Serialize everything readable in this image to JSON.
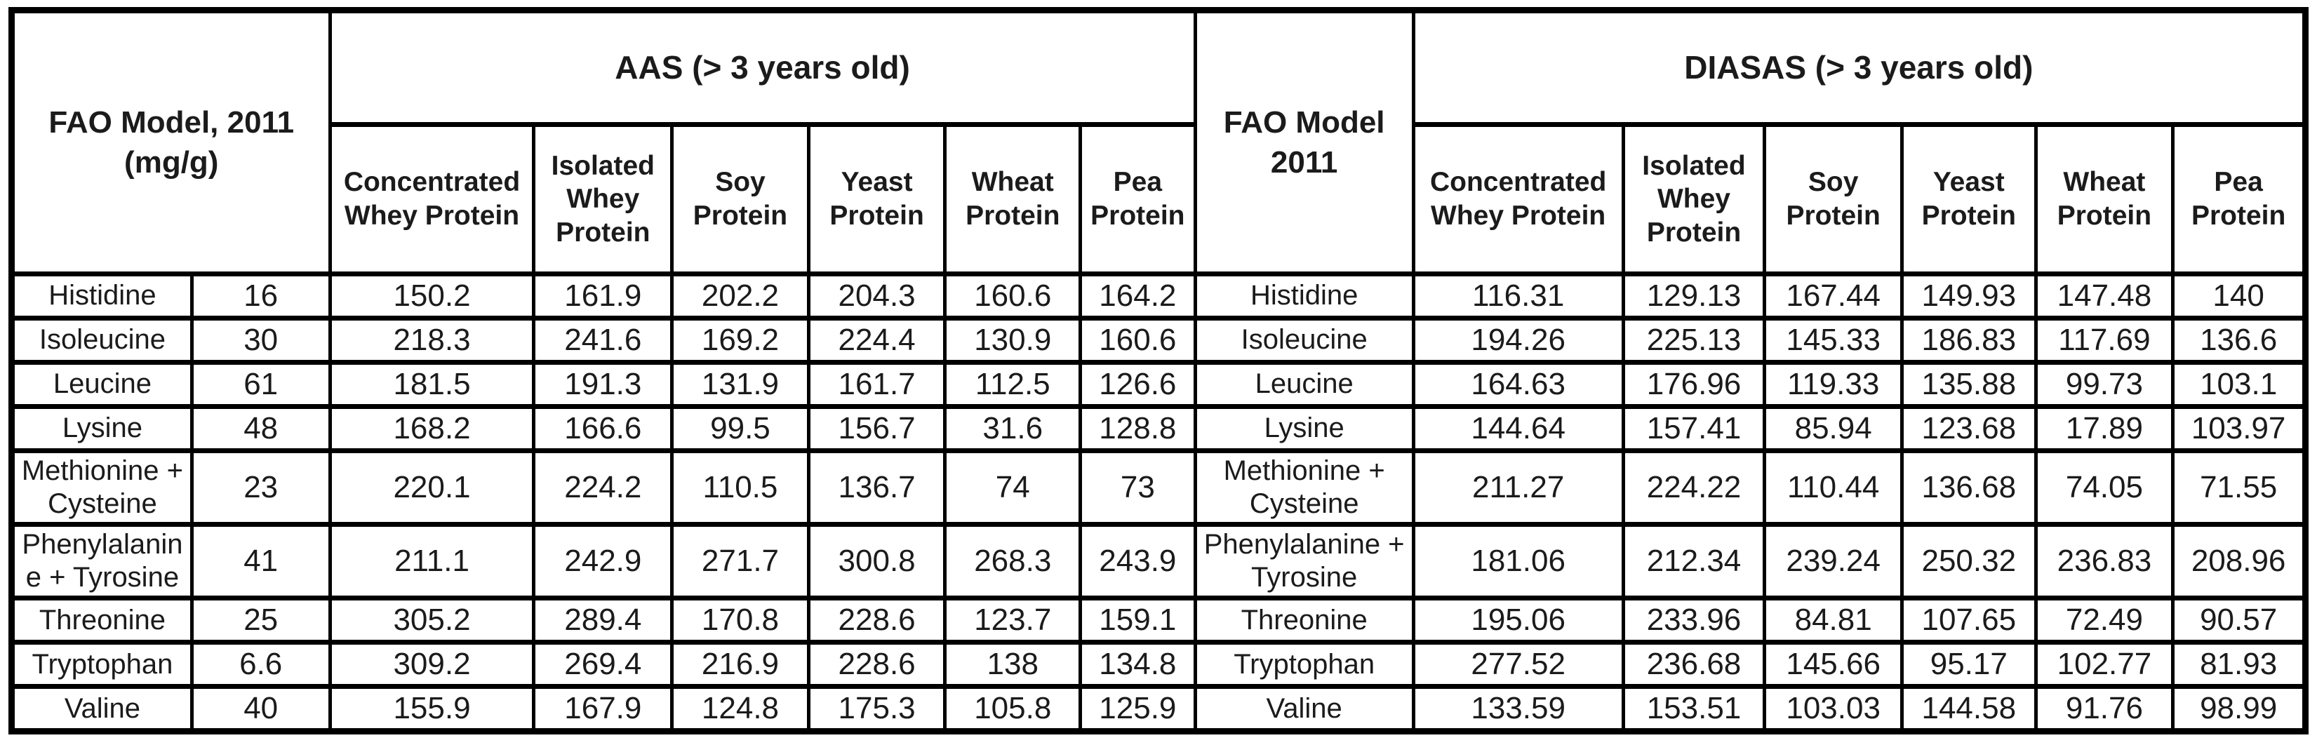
{
  "colors": {
    "background": "#ffffff",
    "text": "#1b1b1b",
    "border": "#000000"
  },
  "table": {
    "left_header": {
      "line1": "FAO Model, 2011",
      "line2": "(mg/g)"
    },
    "aas_banner": "AAS (> 3 years old)",
    "mid_header": {
      "line1": "FAO Model",
      "line2": "2011"
    },
    "diasas_banner": "DIASAS (> 3 years old)",
    "protein_columns": [
      "Concentrated Whey Protein",
      "Isolated Whey Protein",
      "Soy Protein",
      "Yeast Protein",
      "Wheat Protein",
      "Pea Protein"
    ],
    "rows": [
      {
        "amino_acid": "Histidine",
        "fao": "16",
        "aas": [
          "150.2",
          "161.9",
          "202.2",
          "204.3",
          "160.6",
          "164.2"
        ],
        "diasas": [
          "116.31",
          "129.13",
          "167.44",
          "149.93",
          "147.48",
          "140"
        ]
      },
      {
        "amino_acid": "Isoleucine",
        "fao": "30",
        "aas": [
          "218.3",
          "241.6",
          "169.2",
          "224.4",
          "130.9",
          "160.6"
        ],
        "diasas": [
          "194.26",
          "225.13",
          "145.33",
          "186.83",
          "117.69",
          "136.6"
        ]
      },
      {
        "amino_acid": "Leucine",
        "fao": "61",
        "aas": [
          "181.5",
          "191.3",
          "131.9",
          "161.7",
          "112.5",
          "126.6"
        ],
        "diasas": [
          "164.63",
          "176.96",
          "119.33",
          "135.88",
          "99.73",
          "103.1"
        ]
      },
      {
        "amino_acid": "Lysine",
        "fao": "48",
        "aas": [
          "168.2",
          "166.6",
          "99.5",
          "156.7",
          "31.6",
          "128.8"
        ],
        "diasas": [
          "144.64",
          "157.41",
          "85.94",
          "123.68",
          "17.89",
          "103.97"
        ]
      },
      {
        "amino_acid": "Methionine + Cysteine",
        "fao": "23",
        "aas": [
          "220.1",
          "224.2",
          "110.5",
          "136.7",
          "74",
          "73"
        ],
        "diasas": [
          "211.27",
          "224.22",
          "110.44",
          "136.68",
          "74.05",
          "71.55"
        ]
      },
      {
        "amino_acid": "Phenylalanine + Tyrosine",
        "fao": "41",
        "aas": [
          "211.1",
          "242.9",
          "271.7",
          "300.8",
          "268.3",
          "243.9"
        ],
        "diasas": [
          "181.06",
          "212.34",
          "239.24",
          "250.32",
          "236.83",
          "208.96"
        ]
      },
      {
        "amino_acid": "Threonine",
        "fao": "25",
        "aas": [
          "305.2",
          "289.4",
          "170.8",
          "228.6",
          "123.7",
          "159.1"
        ],
        "diasas": [
          "195.06",
          "233.96",
          "84.81",
          "107.65",
          "72.49",
          "90.57"
        ]
      },
      {
        "amino_acid": "Tryptophan",
        "fao": "6.6",
        "aas": [
          "309.2",
          "269.4",
          "216.9",
          "228.6",
          "138",
          "134.8"
        ],
        "diasas": [
          "277.52",
          "236.68",
          "145.66",
          "95.17",
          "102.77",
          "81.93"
        ]
      },
      {
        "amino_acid": "Valine",
        "fao": "40",
        "aas": [
          "155.9",
          "167.9",
          "124.8",
          "175.3",
          "105.8",
          "125.9"
        ],
        "diasas": [
          "133.59",
          "153.51",
          "103.03",
          "144.58",
          "91.76",
          "98.99"
        ]
      }
    ]
  }
}
